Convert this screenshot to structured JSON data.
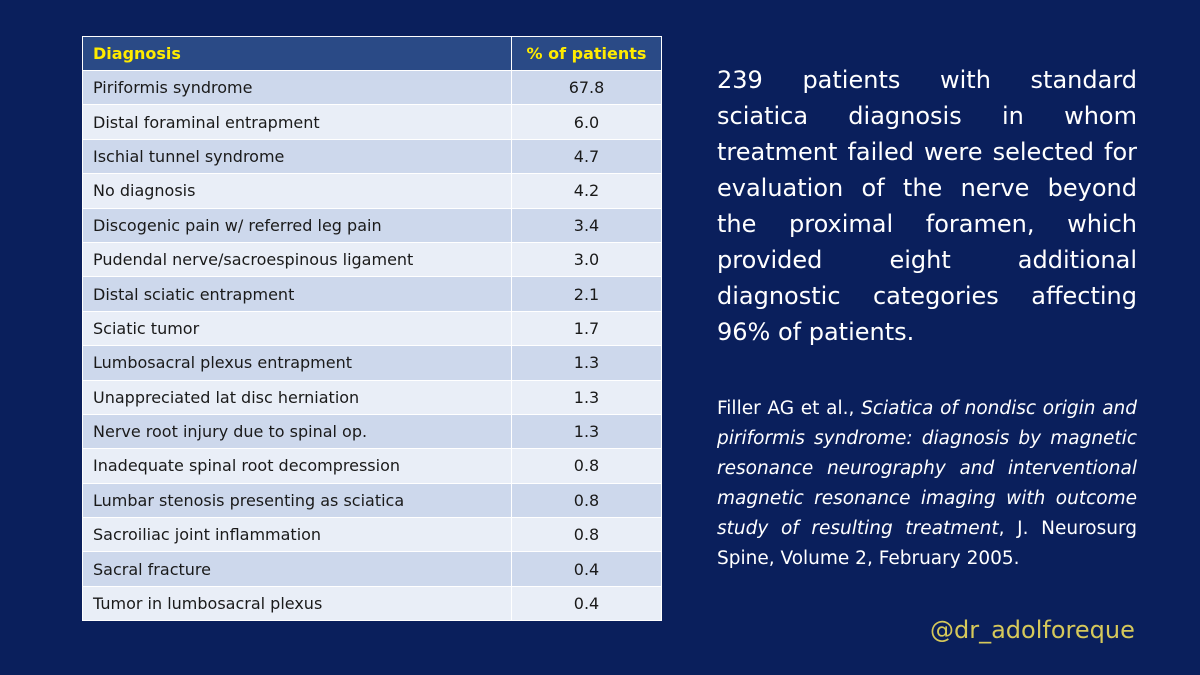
{
  "table": {
    "headers": {
      "diagnosis": "Diagnosis",
      "percent": "% of patients"
    },
    "rows": [
      {
        "diagnosis": "Piriformis syndrome",
        "percent": "67.8"
      },
      {
        "diagnosis": "Distal foraminal entrapment",
        "percent": "6.0"
      },
      {
        "diagnosis": "Ischial tunnel syndrome",
        "percent": "4.7"
      },
      {
        "diagnosis": "No diagnosis",
        "percent": "4.2"
      },
      {
        "diagnosis": "Discogenic pain w/ referred  leg pain",
        "percent": "3.4"
      },
      {
        "diagnosis": "Pudendal nerve/sacroespinous  ligament",
        "percent": "3.0"
      },
      {
        "diagnosis": "Distal sciatic entrapment",
        "percent": "2.1"
      },
      {
        "diagnosis": "Sciatic tumor",
        "percent": "1.7"
      },
      {
        "diagnosis": "Lumbosacral plexus entrapment",
        "percent": "1.3"
      },
      {
        "diagnosis": "Unappreciated  lat disc herniation",
        "percent": "1.3"
      },
      {
        "diagnosis": "Nerve root injury due to spinal op.",
        "percent": "1.3"
      },
      {
        "diagnosis": "Inadequate spinal root decompression",
        "percent": "0.8"
      },
      {
        "diagnosis": "Lumbar stenosis presenting as sciatica",
        "percent": "0.8"
      },
      {
        "diagnosis": "Sacroiliac joint inflammation",
        "percent": "0.8"
      },
      {
        "diagnosis": "Sacral fracture",
        "percent": "0.4"
      },
      {
        "diagnosis": "Tumor in lumbosacral plexus",
        "percent": "0.4"
      }
    ]
  },
  "summary": "239 patients with standard sciatica diagnosis in whom treatment failed were selected for evaluation of the nerve beyond the proximal foramen, which provided eight additional diagnostic categories affecting 96% of patients.",
  "citation": {
    "authors": "Filler AG et al., ",
    "title": "Sciatica of nondisc origin and piriformis syndrome: diagnosis by magnetic resonance neurography and interventional magnetic resonance imaging with outcome study of resulting treatment",
    "source": ", J. Neurosurg Spine, Volume 2, February 2005."
  },
  "handle": "@dr_adolforeque",
  "colors": {
    "background": "#0a1f5c",
    "header_bg": "#2a4a86",
    "header_text": "#ffeb00",
    "row_odd": "#cdd8ec",
    "row_even": "#e9eef7",
    "handle_text": "#d6c85a"
  }
}
